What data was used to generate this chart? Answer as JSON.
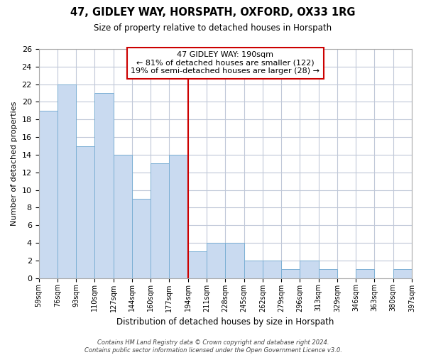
{
  "title": "47, GIDLEY WAY, HORSPATH, OXFORD, OX33 1RG",
  "subtitle": "Size of property relative to detached houses in Horspath",
  "xlabel": "Distribution of detached houses by size in Horspath",
  "ylabel": "Number of detached properties",
  "bin_labels": [
    "59sqm",
    "76sqm",
    "93sqm",
    "110sqm",
    "127sqm",
    "144sqm",
    "160sqm",
    "177sqm",
    "194sqm",
    "211sqm",
    "228sqm",
    "245sqm",
    "262sqm",
    "279sqm",
    "296sqm",
    "313sqm",
    "329sqm",
    "346sqm",
    "363sqm",
    "380sqm",
    "397sqm"
  ],
  "bar_heights": [
    19,
    22,
    15,
    21,
    14,
    9,
    13,
    14,
    3,
    4,
    4,
    2,
    2,
    1,
    2,
    1,
    0,
    1,
    0,
    1
  ],
  "bar_color": "#c9daf0",
  "bar_edge_color": "#7bafd4",
  "vline_idx": 8,
  "vline_color": "#cc0000",
  "annotation_title": "47 GIDLEY WAY: 190sqm",
  "annotation_line1": "← 81% of detached houses are smaller (122)",
  "annotation_line2": "19% of semi-detached houses are larger (28) →",
  "annotation_box_color": "#ffffff",
  "annotation_box_edge": "#cc0000",
  "ylim": [
    0,
    26
  ],
  "yticks": [
    0,
    2,
    4,
    6,
    8,
    10,
    12,
    14,
    16,
    18,
    20,
    22,
    24,
    26
  ],
  "footer_line1": "Contains HM Land Registry data © Crown copyright and database right 2024.",
  "footer_line2": "Contains public sector information licensed under the Open Government Licence v3.0.",
  "background_color": "#ffffff",
  "grid_color": "#c0c8d8"
}
